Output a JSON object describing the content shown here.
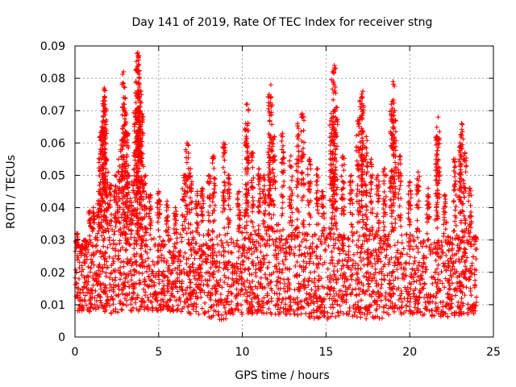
{
  "chart_data": {
    "type": "scatter",
    "title": "Day 141 of 2019, Rate Of TEC Index for receiver stng",
    "xlabel": "GPS time / hours",
    "ylabel": "ROTI / TECUs",
    "xlim": [
      0,
      25
    ],
    "ylim": [
      0,
      0.09
    ],
    "x_ticks": [
      0,
      5,
      10,
      15,
      20,
      25
    ],
    "x_tick_labels": [
      "0",
      "5",
      "10",
      "15",
      "20",
      "25"
    ],
    "y_ticks": [
      0,
      0.01,
      0.02,
      0.03,
      0.04,
      0.05,
      0.06,
      0.07,
      0.08,
      0.09
    ],
    "y_tick_labels": [
      "0",
      "0.01",
      "0.02",
      "0.03",
      "0.04",
      "0.05",
      "0.06",
      "0.07",
      "0.08",
      "0.09"
    ],
    "grid": true,
    "marker": "+",
    "color": "#ff0000",
    "series": [
      {
        "name": "ROTI",
        "points": [
          [
            0.1,
            0.032
          ],
          [
            0.2,
            0.028
          ],
          [
            0.4,
            0.026
          ],
          [
            0.6,
            0.03
          ],
          [
            0.9,
            0.039
          ],
          [
            1.1,
            0.04
          ],
          [
            1.4,
            0.045
          ],
          [
            1.5,
            0.062
          ],
          [
            1.6,
            0.065
          ],
          [
            1.7,
            0.07
          ],
          [
            1.75,
            0.077
          ],
          [
            1.8,
            0.073
          ],
          [
            1.9,
            0.055
          ],
          [
            2.1,
            0.047
          ],
          [
            2.4,
            0.05
          ],
          [
            2.6,
            0.055
          ],
          [
            2.8,
            0.061
          ],
          [
            2.9,
            0.082
          ],
          [
            3.0,
            0.074
          ],
          [
            3.1,
            0.063
          ],
          [
            3.2,
            0.05
          ],
          [
            3.4,
            0.048
          ],
          [
            3.6,
            0.07
          ],
          [
            3.7,
            0.083
          ],
          [
            3.75,
            0.088
          ],
          [
            3.8,
            0.087
          ],
          [
            3.85,
            0.08
          ],
          [
            3.9,
            0.076
          ],
          [
            4.0,
            0.069
          ],
          [
            4.2,
            0.05
          ],
          [
            4.5,
            0.044
          ],
          [
            5.0,
            0.045
          ],
          [
            5.5,
            0.042
          ],
          [
            6.0,
            0.04
          ],
          [
            6.5,
            0.05
          ],
          [
            6.7,
            0.06
          ],
          [
            6.9,
            0.052
          ],
          [
            7.3,
            0.045
          ],
          [
            7.6,
            0.046
          ],
          [
            8.0,
            0.05
          ],
          [
            8.3,
            0.056
          ],
          [
            8.9,
            0.06
          ],
          [
            9.2,
            0.05
          ],
          [
            9.8,
            0.045
          ],
          [
            10.2,
            0.066
          ],
          [
            10.3,
            0.072
          ],
          [
            10.6,
            0.057
          ],
          [
            11.0,
            0.052
          ],
          [
            11.3,
            0.05
          ],
          [
            11.6,
            0.075
          ],
          [
            11.7,
            0.078
          ],
          [
            11.9,
            0.062
          ],
          [
            12.4,
            0.063
          ],
          [
            12.9,
            0.056
          ],
          [
            13.3,
            0.066
          ],
          [
            13.6,
            0.069
          ],
          [
            14.0,
            0.055
          ],
          [
            14.5,
            0.052
          ],
          [
            14.8,
            0.045
          ],
          [
            15.3,
            0.067
          ],
          [
            15.4,
            0.082
          ],
          [
            15.5,
            0.084
          ],
          [
            15.6,
            0.071
          ],
          [
            16.0,
            0.056
          ],
          [
            16.5,
            0.05
          ],
          [
            16.9,
            0.067
          ],
          [
            17.1,
            0.074
          ],
          [
            17.2,
            0.076
          ],
          [
            17.4,
            0.062
          ],
          [
            17.7,
            0.055
          ],
          [
            18.1,
            0.05
          ],
          [
            18.5,
            0.052
          ],
          [
            18.9,
            0.072
          ],
          [
            19.0,
            0.079
          ],
          [
            19.1,
            0.07
          ],
          [
            19.4,
            0.056
          ],
          [
            20.0,
            0.048
          ],
          [
            20.5,
            0.051
          ],
          [
            21.1,
            0.046
          ],
          [
            21.6,
            0.062
          ],
          [
            21.7,
            0.068
          ],
          [
            22.1,
            0.044
          ],
          [
            22.7,
            0.055
          ],
          [
            23.0,
            0.06
          ],
          [
            23.1,
            0.066
          ],
          [
            23.3,
            0.057
          ],
          [
            23.6,
            0.046
          ],
          [
            23.9,
            0.031
          ]
        ],
        "envelope_upper": [
          [
            0,
            0.028
          ],
          [
            1,
            0.03
          ],
          [
            2,
            0.034
          ],
          [
            3,
            0.034
          ],
          [
            4,
            0.032
          ],
          [
            5,
            0.03
          ],
          [
            6,
            0.032
          ],
          [
            7,
            0.033
          ],
          [
            8,
            0.031
          ],
          [
            9,
            0.032
          ],
          [
            10,
            0.033
          ],
          [
            11,
            0.034
          ],
          [
            12,
            0.035
          ],
          [
            13,
            0.034
          ],
          [
            14,
            0.033
          ],
          [
            15,
            0.034
          ],
          [
            16,
            0.033
          ],
          [
            17,
            0.032
          ],
          [
            18,
            0.032
          ],
          [
            19,
            0.033
          ],
          [
            20,
            0.032
          ],
          [
            21,
            0.031
          ],
          [
            22,
            0.031
          ],
          [
            23,
            0.032
          ],
          [
            24,
            0.03
          ]
        ],
        "envelope_lower": [
          [
            0,
            0.008
          ],
          [
            2,
            0.007
          ],
          [
            4,
            0.008
          ],
          [
            6,
            0.008
          ],
          [
            8,
            0.006
          ],
          [
            9,
            0.005
          ],
          [
            10,
            0.007
          ],
          [
            12,
            0.007
          ],
          [
            14,
            0.006
          ],
          [
            15,
            0.005
          ],
          [
            16,
            0.007
          ],
          [
            17,
            0.006
          ],
          [
            18,
            0.005
          ],
          [
            19,
            0.007
          ],
          [
            20,
            0.007
          ],
          [
            22,
            0.006
          ],
          [
            24,
            0.007
          ]
        ]
      }
    ]
  }
}
